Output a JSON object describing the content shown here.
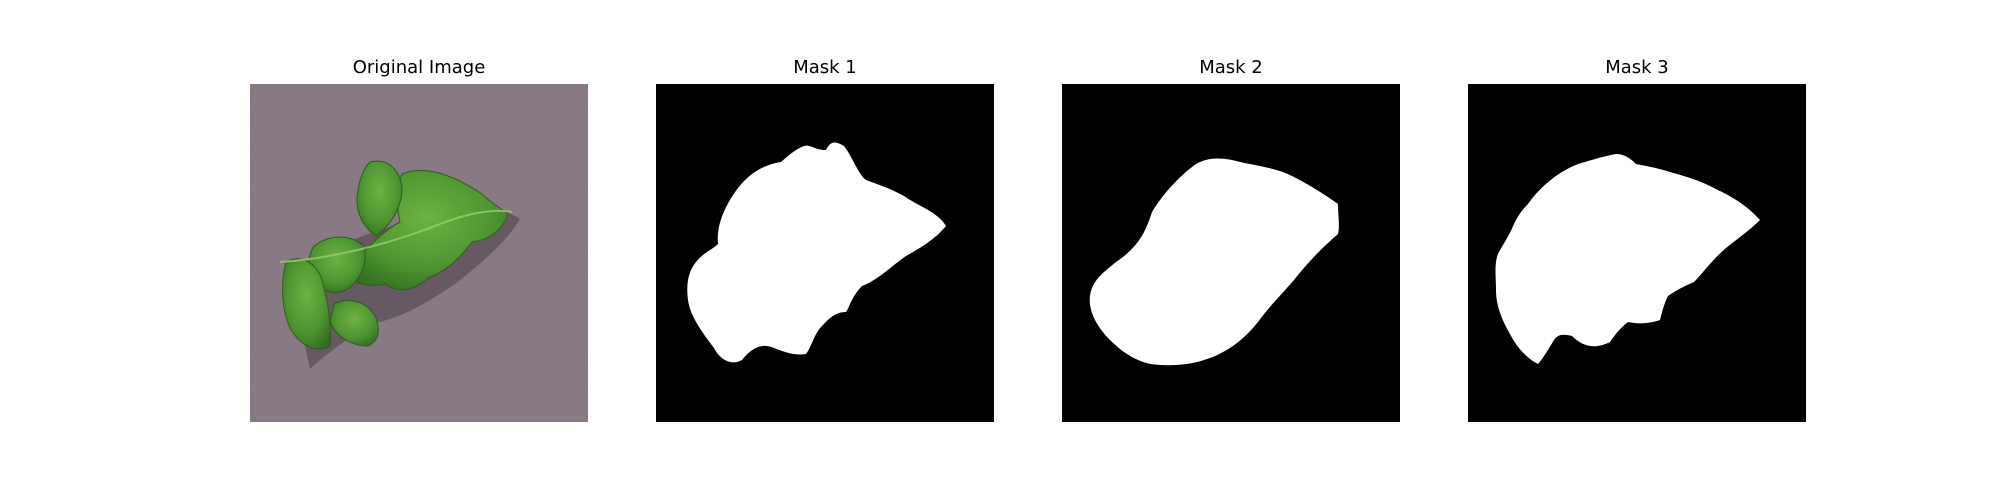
{
  "panels": [
    {
      "title": "Original Image"
    },
    {
      "title": "Mask 1"
    },
    {
      "title": "Mask 2"
    },
    {
      "title": "Mask 3"
    }
  ],
  "colors": {
    "background": "#ffffff",
    "mask_background": "#000000",
    "mask_foreground": "#ffffff",
    "photo_background": "#8f7f8b",
    "leaf_green": "#4f9a32"
  }
}
